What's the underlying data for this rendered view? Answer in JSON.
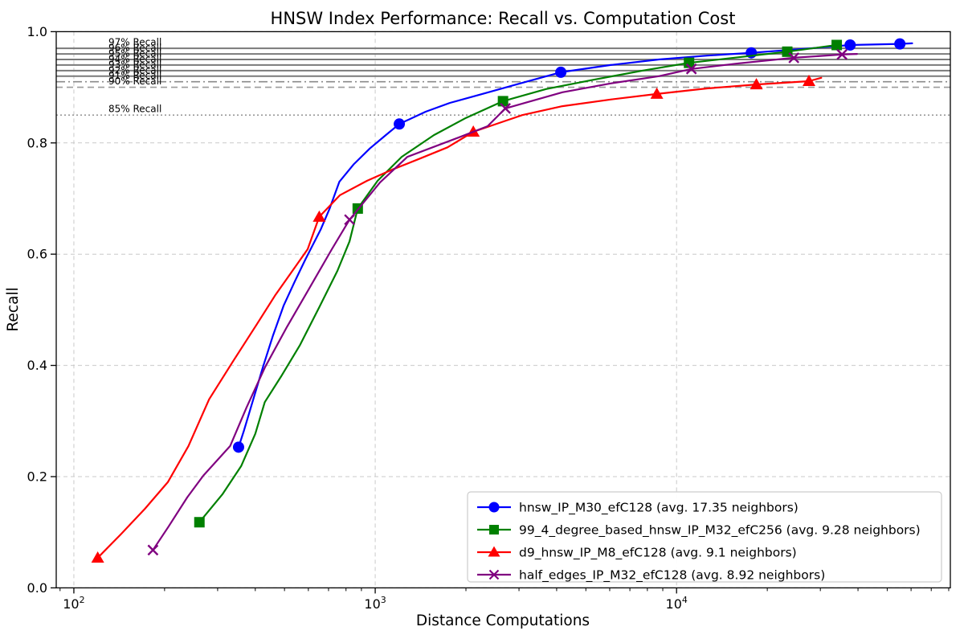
{
  "chart_data": {
    "type": "line",
    "title": "HNSW Index Performance: Recall vs. Computation Cost",
    "xlabel": "Distance Computations",
    "ylabel": "Recall",
    "x_scale": "log",
    "xlim": [
      87.4,
      81000
    ],
    "ylim": [
      0.0,
      1.0
    ],
    "x_ticks": [
      100,
      1000,
      10000
    ],
    "x_tick_labels": [
      {
        "base": "10",
        "exp": "2"
      },
      {
        "base": "10",
        "exp": "3"
      },
      {
        "base": "10",
        "exp": "4"
      }
    ],
    "y_ticks": [
      0.0,
      0.2,
      0.4,
      0.6,
      0.8,
      1.0
    ],
    "y_tick_labels": [
      "0.0",
      "0.2",
      "0.4",
      "0.6",
      "0.8",
      "1.0"
    ],
    "grid": true,
    "grid_color": "#c9c9c9",
    "legend_position": "lower right",
    "reference_lines": [
      {
        "value": 0.97,
        "style": "solid",
        "label": "97% Recall",
        "color": "#7a7a7a"
      },
      {
        "value": 0.96,
        "style": "solid",
        "label": "96% Recall",
        "color": "#7a7a7a"
      },
      {
        "value": 0.95,
        "style": "solid",
        "label": "95% Recall",
        "color": "#7a7a7a"
      },
      {
        "value": 0.94,
        "style": "solid",
        "label": "94% Recall",
        "color": "#7a7a7a"
      },
      {
        "value": 0.93,
        "style": "solid",
        "label": "93% Recall",
        "color": "#7a7a7a"
      },
      {
        "value": 0.92,
        "style": "solid",
        "label": "92% Recall",
        "color": "#7a7a7a"
      },
      {
        "value": 0.91,
        "style": "dashdot",
        "label": "91% Recall",
        "color": "#8a8a8a"
      },
      {
        "value": 0.9,
        "style": "dashed",
        "label": "90% Recall",
        "color": "#9a9a9a"
      },
      {
        "value": 0.85,
        "style": "dotted",
        "label": "85% Recall",
        "color": "#9a9a9a"
      }
    ],
    "series": [
      {
        "name": "hnsw_IP_M30_efC128 (avg. 17.35 neighbors)",
        "color": "#0000ff",
        "marker": "circle",
        "points": [
          [
            352,
            0.253
          ],
          [
            366,
            0.281
          ],
          [
            394,
            0.339
          ],
          [
            424,
            0.397
          ],
          [
            458,
            0.454
          ],
          [
            497,
            0.508
          ],
          [
            541,
            0.551
          ],
          [
            586,
            0.59
          ],
          [
            660,
            0.645
          ],
          [
            705,
            0.681
          ],
          [
            760,
            0.73
          ],
          [
            850,
            0.762
          ],
          [
            960,
            0.79
          ],
          [
            1084,
            0.814
          ],
          [
            1202,
            0.834
          ],
          [
            1470,
            0.856
          ],
          [
            1770,
            0.872
          ],
          [
            2265,
            0.888
          ],
          [
            3076,
            0.908
          ],
          [
            4130,
            0.927
          ],
          [
            6040,
            0.94
          ],
          [
            8730,
            0.95
          ],
          [
            12630,
            0.957
          ],
          [
            17700,
            0.962
          ],
          [
            26360,
            0.969
          ],
          [
            37670,
            0.976
          ],
          [
            55080,
            0.978
          ],
          [
            60500,
            0.979
          ]
        ],
        "marker_points": [
          [
            352,
            0.253
          ],
          [
            1202,
            0.834
          ],
          [
            4130,
            0.927
          ],
          [
            17700,
            0.962
          ],
          [
            37670,
            0.976
          ],
          [
            55080,
            0.978
          ]
        ]
      },
      {
        "name": "99_4_degree_based_hnsw_IP_M32_efC256 (avg. 9.28 neighbors)",
        "color": "#008000",
        "marker": "square",
        "points": [
          [
            261,
            0.118
          ],
          [
            311,
            0.168
          ],
          [
            359,
            0.219
          ],
          [
            400,
            0.277
          ],
          [
            430,
            0.334
          ],
          [
            487,
            0.38
          ],
          [
            562,
            0.436
          ],
          [
            650,
            0.503
          ],
          [
            749,
            0.57
          ],
          [
            822,
            0.623
          ],
          [
            875,
            0.682
          ],
          [
            1019,
            0.732
          ],
          [
            1225,
            0.775
          ],
          [
            1566,
            0.814
          ],
          [
            2000,
            0.845
          ],
          [
            2655,
            0.875
          ],
          [
            3700,
            0.897
          ],
          [
            5350,
            0.914
          ],
          [
            7730,
            0.93
          ],
          [
            11000,
            0.944
          ],
          [
            16100,
            0.954
          ],
          [
            23300,
            0.964
          ],
          [
            34000,
            0.976
          ]
        ],
        "marker_points": [
          [
            261,
            0.118
          ],
          [
            875,
            0.682
          ],
          [
            2655,
            0.875
          ],
          [
            11000,
            0.944
          ],
          [
            23300,
            0.964
          ],
          [
            34000,
            0.976
          ]
        ]
      },
      {
        "name": "d9_hnsw_IP_M8_efC128 (avg. 9.1 neighbors)",
        "color": "#ff0000",
        "marker": "triangle",
        "points": [
          [
            120,
            0.054
          ],
          [
            143,
            0.096
          ],
          [
            172,
            0.142
          ],
          [
            205,
            0.19
          ],
          [
            240,
            0.255
          ],
          [
            281,
            0.339
          ],
          [
            337,
            0.407
          ],
          [
            406,
            0.475
          ],
          [
            467,
            0.527
          ],
          [
            541,
            0.576
          ],
          [
            597,
            0.609
          ],
          [
            652,
            0.667
          ],
          [
            764,
            0.706
          ],
          [
            940,
            0.732
          ],
          [
            1151,
            0.753
          ],
          [
            1410,
            0.772
          ],
          [
            1738,
            0.792
          ],
          [
            2116,
            0.82
          ],
          [
            3076,
            0.85
          ],
          [
            4180,
            0.866
          ],
          [
            6040,
            0.878
          ],
          [
            8600,
            0.888
          ],
          [
            12630,
            0.898
          ],
          [
            18400,
            0.905
          ],
          [
            27500,
            0.911
          ],
          [
            30200,
            0.917
          ]
        ],
        "marker_points": [
          [
            120,
            0.054
          ],
          [
            652,
            0.667
          ],
          [
            2116,
            0.82
          ],
          [
            8600,
            0.888
          ],
          [
            18400,
            0.905
          ],
          [
            27500,
            0.911
          ]
        ]
      },
      {
        "name": "half_edges_IP_M32_efC128 (avg. 8.92 neighbors)",
        "color": "#800080",
        "marker": "x",
        "points": [
          [
            183,
            0.068
          ],
          [
            206,
            0.11
          ],
          [
            238,
            0.163
          ],
          [
            269,
            0.202
          ],
          [
            330,
            0.255
          ],
          [
            374,
            0.324
          ],
          [
            431,
            0.397
          ],
          [
            509,
            0.469
          ],
          [
            623,
            0.551
          ],
          [
            718,
            0.609
          ],
          [
            822,
            0.662
          ],
          [
            1038,
            0.729
          ],
          [
            1279,
            0.775
          ],
          [
            1918,
            0.811
          ],
          [
            2361,
            0.83
          ],
          [
            2704,
            0.862
          ],
          [
            4180,
            0.891
          ],
          [
            6040,
            0.907
          ],
          [
            8730,
            0.92
          ],
          [
            11200,
            0.933
          ],
          [
            16100,
            0.943
          ],
          [
            24500,
            0.953
          ],
          [
            35400,
            0.959
          ],
          [
            39700,
            0.96
          ]
        ],
        "marker_points": [
          [
            183,
            0.068
          ],
          [
            822,
            0.662
          ],
          [
            2704,
            0.862
          ],
          [
            11200,
            0.933
          ],
          [
            24500,
            0.953
          ],
          [
            35400,
            0.959
          ]
        ]
      }
    ]
  }
}
